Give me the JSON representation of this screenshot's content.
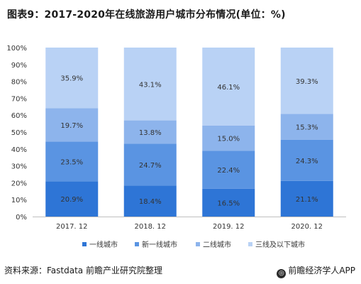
{
  "chart_data": {
    "type": "bar",
    "stacked": true,
    "title": "图表9：2017-2020年在线旅游用户城市分布情况(单位：%)",
    "categories": [
      "2017. 12",
      "2018. 12",
      "2019. 12",
      "2020. 12"
    ],
    "ylim": [
      0,
      100
    ],
    "yticks": [
      "0%",
      "10%",
      "20%",
      "30%",
      "40%",
      "50%",
      "60%",
      "70%",
      "80%",
      "90%",
      "100%"
    ],
    "series": [
      {
        "name": "一线城市",
        "color": "#2e75d6",
        "values": [
          20.9,
          18.4,
          16.5,
          21.1
        ],
        "labels": [
          "20.9%",
          "18.4%",
          "16.5%",
          "21.1%"
        ]
      },
      {
        "name": "新一线城市",
        "color": "#5a94e2",
        "values": [
          23.5,
          24.7,
          22.4,
          24.3
        ],
        "labels": [
          "23.5%",
          "24.7%",
          "22.4%",
          "24.3%"
        ]
      },
      {
        "name": "二线城市",
        "color": "#8db4ec",
        "values": [
          19.7,
          13.8,
          15.0,
          15.3
        ],
        "labels": [
          "19.7%",
          "13.8%",
          "15.0%",
          "15.3%"
        ]
      },
      {
        "name": "三线及以下城市",
        "color": "#b9d2f5",
        "values": [
          35.9,
          43.1,
          46.1,
          39.3
        ],
        "labels": [
          "35.9%",
          "43.1%",
          "46.1%",
          "39.3%"
        ]
      }
    ],
    "legend_position": "bottom",
    "grid": false
  },
  "footer": {
    "source": "资料来源：Fastdata 前瞻产业研究院整理",
    "logo_glyph": "◎",
    "brand": "前瞻经济学人APP"
  }
}
